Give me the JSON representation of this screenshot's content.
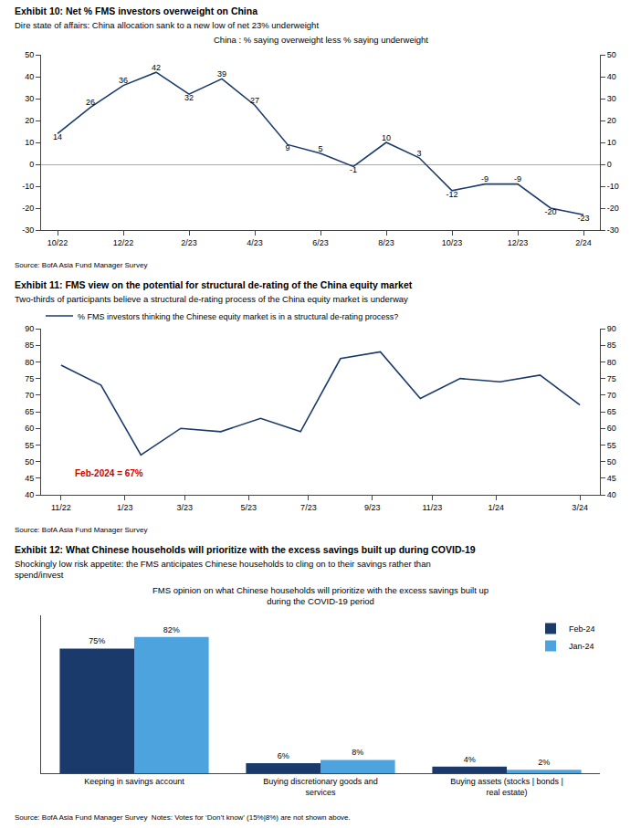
{
  "chart_data": [
    {
      "type": "line",
      "title": "Exhibit 10: Net % FMS investors overweight on China",
      "subtitle": "Dire state of affairs: China allocation sank to a new low of net 23% underweight",
      "chart_title": "China : % saying overweight less % saying underweight",
      "source": "Source: BofA Asia Fund Manager Survey",
      "x": [
        0,
        1,
        2,
        3,
        4,
        5,
        6,
        7,
        8,
        9,
        10,
        11,
        12,
        13,
        14,
        15,
        16
      ],
      "values": [
        14,
        26,
        36,
        42,
        32,
        39,
        27,
        9,
        5,
        -1,
        10,
        3,
        -12,
        -9,
        -9,
        -20,
        -23
      ],
      "color": "#1a3a6b",
      "data_labels": true,
      "xlim": [
        -0.5,
        16.5
      ],
      "xticks": [
        {
          "value": 0,
          "label": "10/22"
        },
        {
          "value": 2,
          "label": "12/22"
        },
        {
          "value": 4,
          "label": "2/23"
        },
        {
          "value": 6,
          "label": "4/23"
        },
        {
          "value": 8,
          "label": "6/23"
        },
        {
          "value": 10,
          "label": "8/23"
        },
        {
          "value": 12,
          "label": "10/23"
        },
        {
          "value": 14,
          "label": "12/23"
        },
        {
          "value": 16,
          "label": "2/24"
        }
      ],
      "ylim": [
        -30,
        50
      ],
      "yticks": [
        -30,
        -20,
        -10,
        0,
        10,
        20,
        30,
        40,
        50
      ],
      "y2lim": [
        -30,
        50
      ],
      "y2ticks": [
        -30,
        -20,
        -10,
        0,
        10,
        20,
        30,
        40,
        50
      ],
      "grid": false
    },
    {
      "type": "line",
      "title": "Exhibit 11: FMS view on the potential for structural de-rating of the China equity market",
      "subtitle": "Two-thirds of participants believe a structural de-rating process of the China equity market is underway",
      "source": "Source: BofA Asia Fund Manager Survey",
      "x": [
        0,
        1,
        2,
        3,
        4,
        5,
        6,
        7,
        8,
        9,
        10,
        11,
        12,
        13
      ],
      "series": [
        {
          "name": "% FMS investors thinking the Chinese equity market is in a structural de-rating process?",
          "color": "#1a3a6b",
          "values": [
            79,
            73,
            52,
            60,
            59,
            63,
            59,
            81,
            83,
            69,
            75,
            74,
            76,
            67
          ]
        }
      ],
      "legend": "upper left",
      "annotations": [
        {
          "text": "Feb-2024 = 67%",
          "x": 0.3,
          "y": 44.5,
          "color": "#cc0000"
        }
      ],
      "xlim": [
        -0.5,
        13.5
      ],
      "xticks": [
        {
          "value": 0,
          "label": "11/22"
        },
        {
          "value": 1.6,
          "label": "1/23"
        },
        {
          "value": 3.1,
          "label": "3/23"
        },
        {
          "value": 4.7,
          "label": "5/23"
        },
        {
          "value": 6.2,
          "label": "7/23"
        },
        {
          "value": 7.8,
          "label": "9/23"
        },
        {
          "value": 9.3,
          "label": "11/23"
        },
        {
          "value": 10.9,
          "label": "1/24"
        },
        {
          "value": 13,
          "label": "3/24"
        }
      ],
      "ylim": [
        40,
        90
      ],
      "yticks": [
        40,
        45,
        50,
        55,
        60,
        65,
        70,
        75,
        80,
        85,
        90
      ],
      "y2lim": [
        40,
        90
      ],
      "y2ticks": [
        40,
        45,
        50,
        55,
        60,
        65,
        70,
        75,
        80,
        85,
        90
      ],
      "grid": false
    },
    {
      "type": "bar",
      "title": "Exhibit 12: What Chinese households will prioritize with the excess savings built up during COVID-19",
      "subtitle": "Shockingly low risk appetite: the FMS anticipates Chinese households to cling on to their savings rather than\nspend/invest",
      "chart_title": "FMS opinion on what Chinese households will prioritize with the excess savings built up\nduring the COVID-19 period",
      "source": "Source: BofA Asia Fund Manager Survey  Notes: Votes for ‘Don’t know’ (15%|8%) are not shown above.",
      "categories": [
        "Keeping in savings account",
        "Buying discretionary goods and\nservices",
        "Buying assets (stocks | bonds |\nreal estate)"
      ],
      "series": [
        {
          "name": "Feb-24",
          "color": "#1a3a6b",
          "values": [
            75,
            6,
            4
          ],
          "value_labels": [
            "75%",
            "6%",
            "4%"
          ]
        },
        {
          "name": "Jan-24",
          "color": "#4ca3dd",
          "values": [
            82,
            8,
            2
          ],
          "value_labels": [
            "82%",
            "8%",
            "2%"
          ]
        }
      ],
      "data_labels": true,
      "legend": "upper right",
      "tick_labels": "x",
      "ylim": [
        0,
        95
      ],
      "grid": false
    }
  ]
}
